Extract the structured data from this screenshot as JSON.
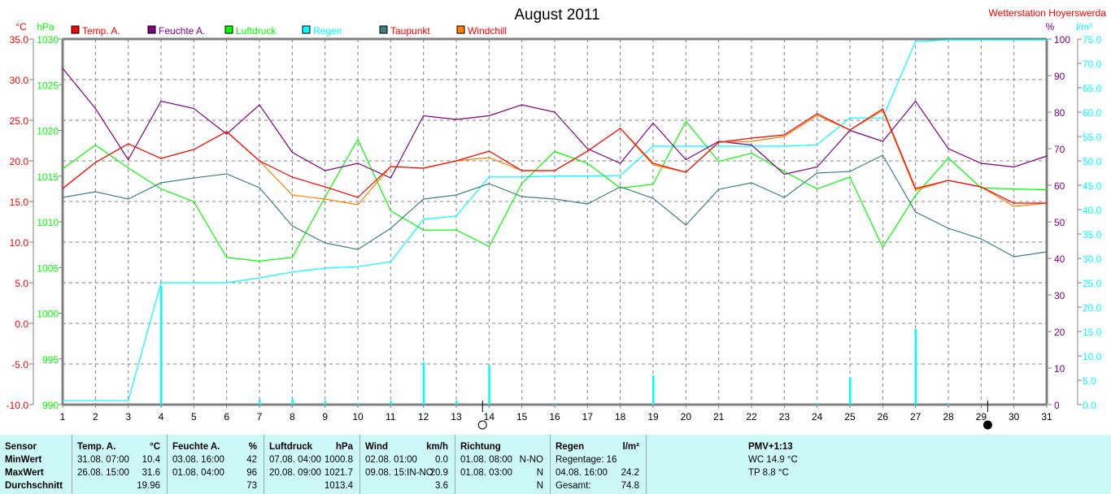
{
  "chart_data": {
    "type": "line",
    "title": "August 2011",
    "station": "Wetterstation Hoyerswerda",
    "x": [
      1,
      2,
      3,
      4,
      5,
      6,
      7,
      8,
      9,
      10,
      11,
      12,
      13,
      14,
      15,
      16,
      17,
      18,
      19,
      20,
      21,
      22,
      23,
      24,
      25,
      26,
      27,
      28,
      29,
      30,
      31
    ],
    "axes": {
      "temp": {
        "unit": "°C",
        "range": [
          -10,
          35
        ],
        "ticks": [
          "35.0",
          "30.0",
          "25.0",
          "20.0",
          "15.0",
          "10.0",
          "5.0",
          "0.0",
          "-5.0",
          "-10.0"
        ]
      },
      "pressure": {
        "unit": "hPa",
        "range": [
          990,
          1030
        ],
        "ticks": [
          "1030",
          "1025",
          "1020",
          "1015",
          "1010",
          "1005",
          "1000",
          "995",
          "990"
        ]
      },
      "humidity": {
        "unit": "%",
        "range": [
          0,
          100
        ],
        "ticks": [
          "100",
          "90",
          "80",
          "70",
          "60",
          "50",
          "40",
          "30",
          "20",
          "10",
          "0"
        ]
      },
      "rain": {
        "unit": "l/m²",
        "range": [
          0,
          75
        ],
        "ticks": [
          "75.0",
          "70.0",
          "65.0",
          "60.0",
          "55.0",
          "50.0",
          "45.0",
          "40.0",
          "35.0",
          "30.0",
          "25.0",
          "20.0",
          "15.0",
          "10.0",
          "5.0",
          "0.0"
        ]
      }
    },
    "series": [
      {
        "name": "Temp. A.",
        "axis": "temp",
        "color": "#ff0000",
        "values": [
          16.6,
          19.8,
          22.1,
          20.3,
          21.4,
          23.6,
          20.0,
          18.0,
          16.8,
          15.5,
          19.3,
          19.1,
          20.0,
          21.2,
          18.8,
          18.8,
          21.2,
          24.0,
          19.7,
          18.6,
          22.3,
          22.8,
          23.2,
          25.8,
          23.8,
          26.4,
          16.6,
          17.6,
          16.8,
          14.8,
          14.8
        ]
      },
      {
        "name": "Feuchte A.",
        "axis": "humidity",
        "color": "#800080",
        "values": [
          92,
          81,
          67,
          83,
          81,
          74,
          82,
          69,
          64,
          66,
          62,
          79,
          78,
          79,
          82,
          80,
          70,
          66,
          77,
          67,
          72,
          71,
          63,
          65,
          75,
          72,
          83,
          70,
          66,
          65,
          68
        ]
      },
      {
        "name": "Luftdruck",
        "axis": "pressure",
        "color": "#00ff00",
        "values": [
          1015.8,
          1018.4,
          1015.9,
          1013.6,
          1012.2,
          1006.1,
          1005.7,
          1006.1,
          1012.7,
          1019.0,
          1011.2,
          1009.1,
          1009.1,
          1007.3,
          1014.2,
          1017.7,
          1016.4,
          1013.7,
          1014.1,
          1021.0,
          1016.6,
          1017.5,
          1015.5,
          1013.6,
          1014.9,
          1007.2,
          1012.9,
          1017.0,
          1013.7,
          1013.6,
          1013.5
        ]
      },
      {
        "name": "Regen",
        "axis": "rain",
        "color": "#00ffff",
        "values": [
          0.8,
          0.8,
          0.8,
          25.0,
          25.0,
          25.0,
          26.0,
          27.2,
          28.0,
          28.3,
          29.3,
          38.0,
          38.7,
          46.7,
          46.7,
          46.9,
          46.9,
          47.0,
          53.0,
          53.0,
          53.0,
          53.0,
          53.0,
          53.3,
          58.8,
          58.8,
          74.5,
          74.8,
          74.8,
          74.8,
          74.8
        ],
        "daily": [
          0,
          0,
          0,
          24.2,
          0,
          0,
          1.0,
          1.2,
          0.8,
          0.2,
          0.8,
          8.7,
          0.8,
          8.1,
          0,
          0.2,
          0,
          0,
          6.0,
          0,
          0,
          0,
          0,
          0.2,
          5.6,
          0,
          15.5,
          0.2,
          0,
          0,
          0
        ]
      },
      {
        "name": "Taupunkt",
        "axis": "temp",
        "color": "#408080",
        "values": [
          15.5,
          16.2,
          15.3,
          17.3,
          17.9,
          18.4,
          16.7,
          12.0,
          9.9,
          9.1,
          11.7,
          15.3,
          15.8,
          17.2,
          15.6,
          15.3,
          14.7,
          16.8,
          15.4,
          12.1,
          16.5,
          17.3,
          15.5,
          18.5,
          18.7,
          20.7,
          13.7,
          11.7,
          10.4,
          8.2,
          8.8
        ]
      },
      {
        "name": "Windchill",
        "axis": "temp",
        "color": "#ff8000",
        "values": [
          16.6,
          19.8,
          22.1,
          20.3,
          21.4,
          23.6,
          20.0,
          15.8,
          15.3,
          14.6,
          19.3,
          19.1,
          20.0,
          20.4,
          18.8,
          18.8,
          21.2,
          24.0,
          19.5,
          18.6,
          22.3,
          22.4,
          23.0,
          25.6,
          23.8,
          26.2,
          16.4,
          17.6,
          16.8,
          14.4,
          14.8
        ]
      }
    ],
    "moon": [
      {
        "phase": "full",
        "day": 13.8
      },
      {
        "phase": "new",
        "day": 29.2
      }
    ],
    "grid": true,
    "legend": "top"
  },
  "stats": {
    "sensor": {
      "header": "Sensor",
      "rows": [
        "MinWert",
        "MaxWert",
        "Durchschnitt"
      ]
    },
    "temp": {
      "header": "Temp. A.",
      "unit": "°C",
      "min_time": "31.08.  07:00",
      "min": "10.4",
      "max_time": "26.08.  15:00",
      "max": "31.6",
      "avg": "19.96"
    },
    "humidity": {
      "header": "Feuchte A.",
      "unit": "%",
      "min_time": "03.08.  16:00",
      "min": "42",
      "max_time": "01.08.  04:00",
      "max": "96",
      "avg": "73"
    },
    "pressure": {
      "header": "Luftdruck",
      "unit": "hPa",
      "min_time": "07.08.  04:00",
      "min": "1000.8",
      "max_time": "20.08.  09:00",
      "max": "1021.7",
      "avg": "1013.4"
    },
    "wind": {
      "header": "Wind",
      "unit": "km/h",
      "min_time": "02.08.  01:00",
      "min": "0.0",
      "max_time": "09.08.  15:IN-NO",
      "max": "20.9",
      "avg": "3.6"
    },
    "direction": {
      "header": "Richtung",
      "min_time": "01.08.  08:00",
      "min": "N-NO",
      "max_time": "01.08.  03:00",
      "max": "N",
      "avg": "N"
    },
    "rain": {
      "header": "Regen",
      "unit": "l/m²",
      "days": "Regentage: 16",
      "max_time": "04.08.  16:00",
      "max": "24.2",
      "total_label": "Gesamt:",
      "total": "74.8"
    },
    "pmv": {
      "header": "PMV+1:13",
      "wc": "WC 14.9 °C",
      "tp": "TP 8.8 °C"
    }
  }
}
